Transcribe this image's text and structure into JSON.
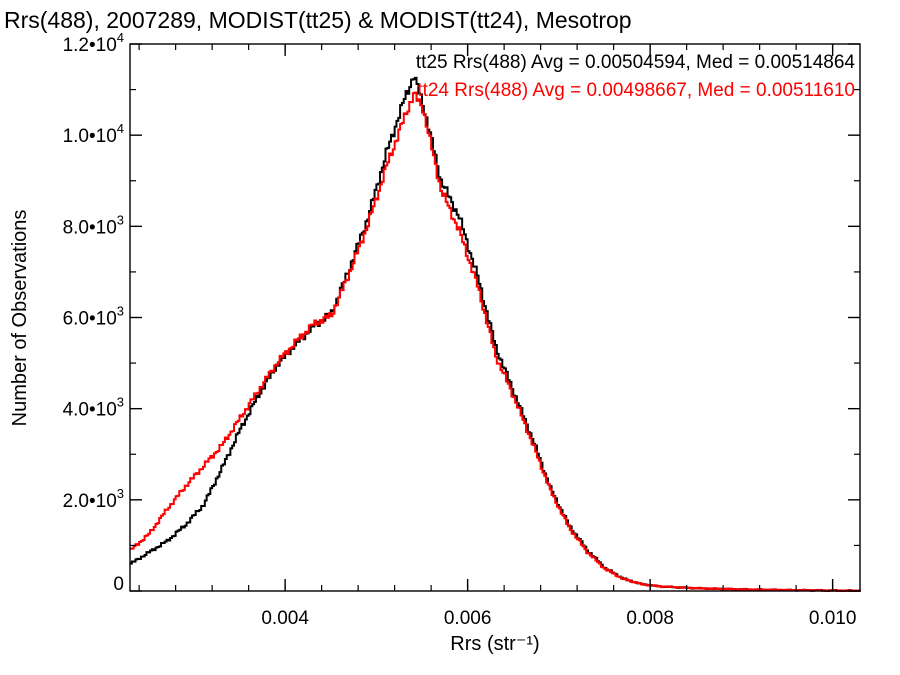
{
  "chart_data": {
    "type": "line",
    "title": "Rrs(488), 2007289, MODIST(tt25) & MODIST(tt24), Mesotrop",
    "xlabel": "Rrs (str⁻¹)",
    "ylabel": "Number of Observations",
    "xlim": [
      0.0023,
      0.0103
    ],
    "ylim": [
      0,
      12000
    ],
    "grid": false,
    "legend_position": "top-right",
    "x_ticks": [
      {
        "value": 0.004,
        "label": "0.004"
      },
      {
        "value": 0.006,
        "label": "0.006"
      },
      {
        "value": 0.008,
        "label": "0.008"
      },
      {
        "value": 0.01,
        "label": "0.010"
      }
    ],
    "y_ticks": [
      {
        "value": 0,
        "mantissa": "0",
        "exponent": ""
      },
      {
        "value": 2000,
        "mantissa": "2.0•10",
        "exponent": "3"
      },
      {
        "value": 4000,
        "mantissa": "4.0•10",
        "exponent": "3"
      },
      {
        "value": 6000,
        "mantissa": "6.0•10",
        "exponent": "3"
      },
      {
        "value": 8000,
        "mantissa": "8.0•10",
        "exponent": "3"
      },
      {
        "value": 10000,
        "mantissa": "1.0•10",
        "exponent": "4"
      },
      {
        "value": 12000,
        "mantissa": "1.2•10",
        "exponent": "4"
      }
    ],
    "series": [
      {
        "name": "tt25",
        "color": "#000000",
        "legend": "tt25 Rrs(488) Avg = 0.00504594, Med = 0.00514864",
        "x": [
          0.0023,
          0.0025,
          0.0027,
          0.0029,
          0.0031,
          0.0033,
          0.0035,
          0.0037,
          0.0039,
          0.0041,
          0.0043,
          0.0045,
          0.0047,
          0.0049,
          0.0051,
          0.0053,
          0.0054,
          0.0055,
          0.0057,
          0.0059,
          0.0061,
          0.0063,
          0.0065,
          0.0067,
          0.0069,
          0.0071,
          0.0073,
          0.0075,
          0.0077,
          0.0079,
          0.0081,
          0.0085,
          0.009,
          0.0095,
          0.01,
          0.0103
        ],
        "y": [
          600,
          850,
          1100,
          1450,
          1900,
          2700,
          3550,
          4300,
          4950,
          5400,
          5800,
          6100,
          7100,
          8200,
          9600,
          10800,
          11300,
          10700,
          9000,
          8200,
          6900,
          5350,
          4350,
          3350,
          2250,
          1450,
          900,
          500,
          270,
          150,
          100,
          60,
          35,
          20,
          10,
          5
        ]
      },
      {
        "name": "tt24",
        "color": "#ff0000",
        "legend": "tt24 Rrs(488) Avg = 0.00498667, Med = 0.00511610",
        "x": [
          0.0023,
          0.0025,
          0.0027,
          0.0029,
          0.0031,
          0.0033,
          0.0035,
          0.0037,
          0.0039,
          0.0041,
          0.0043,
          0.0045,
          0.0047,
          0.0049,
          0.0051,
          0.0053,
          0.0054,
          0.0055,
          0.0057,
          0.0059,
          0.0061,
          0.0063,
          0.0065,
          0.0067,
          0.0069,
          0.0071,
          0.0073,
          0.0075,
          0.0077,
          0.0079,
          0.0081,
          0.0085,
          0.009,
          0.0095,
          0.01,
          0.0103
        ],
        "y": [
          900,
          1250,
          1800,
          2300,
          2750,
          3200,
          3800,
          4400,
          5000,
          5450,
          5850,
          6050,
          7000,
          8050,
          9300,
          10400,
          10900,
          10600,
          8800,
          7900,
          6700,
          5150,
          4250,
          3250,
          2200,
          1400,
          860,
          480,
          260,
          150,
          100,
          60,
          35,
          20,
          10,
          5
        ]
      }
    ]
  }
}
